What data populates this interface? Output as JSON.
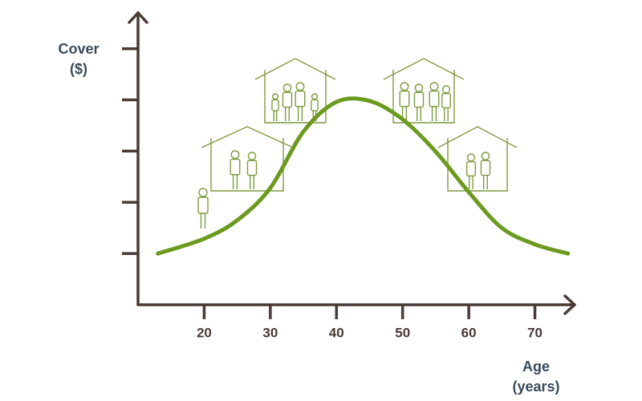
{
  "chart_data": {
    "type": "line",
    "y_label": [
      "Cover",
      "($)"
    ],
    "x_label": [
      "Age",
      "(years)"
    ],
    "x": [
      13,
      20,
      25,
      30,
      35,
      40,
      45,
      50,
      55,
      60,
      65,
      70,
      75
    ],
    "series": [
      {
        "color": "#6b9a1e",
        "values": [
          1.0,
          1.29,
          1.65,
          2.28,
          3.38,
          3.96,
          3.98,
          3.62,
          2.99,
          2.2,
          1.5,
          1.18,
          1.0
        ]
      }
    ],
    "xlim": [
      10,
      76
    ],
    "xticks": [
      20,
      30,
      40,
      50,
      60,
      70
    ],
    "ylim": [
      0,
      5.7
    ],
    "yticks": [
      1,
      2,
      3,
      4,
      5
    ]
  }
}
